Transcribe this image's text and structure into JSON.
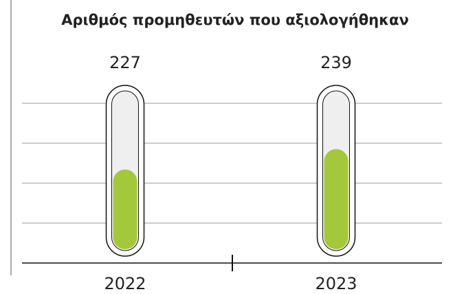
{
  "chart_data": {
    "type": "bar",
    "title": "Αριθμός προμηθευτών που αξιολογήθηκαν",
    "categories": [
      "2022",
      "2023"
    ],
    "values": [
      227,
      239
    ],
    "color": "#a3c93a",
    "ylim": [
      180,
      270
    ]
  }
}
